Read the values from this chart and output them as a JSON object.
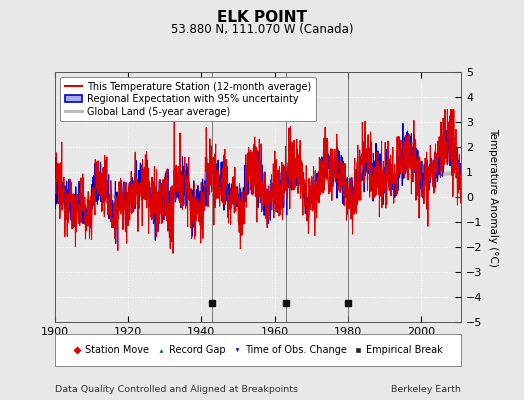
{
  "title": "ELK POINT",
  "subtitle": "53.880 N, 111.070 W (Canada)",
  "ylabel": "Temperature Anomaly (°C)",
  "xlabel_left": "Data Quality Controlled and Aligned at Breakpoints",
  "xlabel_right": "Berkeley Earth",
  "ylim": [
    -5,
    5
  ],
  "xlim": [
    1900,
    2011
  ],
  "xticks": [
    1900,
    1920,
    1940,
    1960,
    1980,
    2000
  ],
  "yticks": [
    -5,
    -4,
    -3,
    -2,
    -1,
    0,
    1,
    2,
    3,
    4,
    5
  ],
  "bg_color": "#e8e8e8",
  "plot_bg_color": "#e8e8e8",
  "grid_color": "#cccccc",
  "station_line_color": "#dd0000",
  "regional_line_color": "#0000cc",
  "regional_fill_color": "#aaaaee",
  "global_line_color": "#bbbbbb",
  "empirical_breaks": [
    1943,
    1963,
    1980
  ],
  "legend1_items": [
    {
      "label": "This Temperature Station (12-month average)",
      "color": "#dd0000"
    },
    {
      "label": "Regional Expectation with 95% uncertainty",
      "color": "#0000cc",
      "fill": "#aaaaee"
    },
    {
      "label": "Global Land (5-year average)",
      "color": "#bbbbbb"
    }
  ],
  "legend2_items": [
    {
      "label": "Station Move",
      "marker": "D",
      "color": "#dd0000"
    },
    {
      "label": "Record Gap",
      "marker": "^",
      "color": "#006600"
    },
    {
      "label": "Time of Obs. Change",
      "marker": "v",
      "color": "#0000cc"
    },
    {
      "label": "Empirical Break",
      "marker": "s",
      "color": "#222222"
    }
  ]
}
